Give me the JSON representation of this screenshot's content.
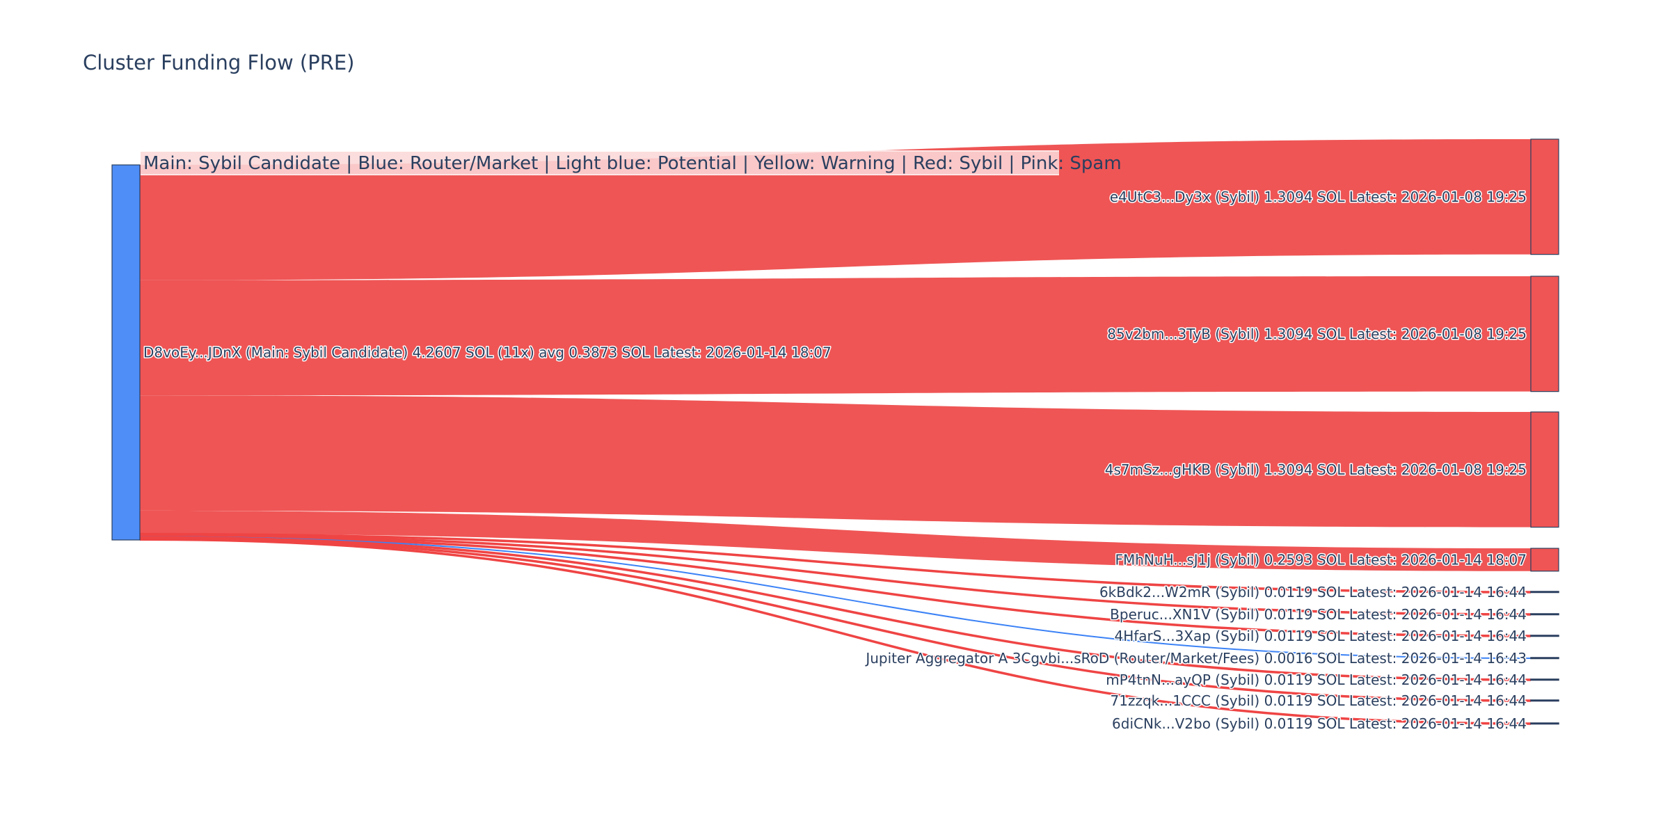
{
  "chart_data": {
    "type": "sankey",
    "title": "Cluster Funding Flow (PRE)",
    "legend_annotation": "Main: Sybil Candidate  |  Blue: Router/Market | Light blue: Potential | Yellow: Warning | Red: Sybil | Pink: Spam",
    "colors": {
      "main": "#4f8ef7",
      "sybil": "#ef5555",
      "router": "#3b82f6",
      "sybil_link": "#ef4444",
      "text": "#2a3f5f"
    },
    "source": {
      "label": "D8voEy...JDnX (Main: Sybil Candidate) 4.2607 SOL (11x) avg 0.3873 SOL Latest: 2026-01-14 18:07",
      "value": 4.2607,
      "category": "main"
    },
    "targets": [
      {
        "label": "e4UtC3...Dy3x (Sybil) 1.3094 SOL Latest: 2026-01-08 19:25",
        "value": 1.3094,
        "category": "sybil"
      },
      {
        "label": "85v2bm...3TyB (Sybil) 1.3094 SOL Latest: 2026-01-08 19:25",
        "value": 1.3094,
        "category": "sybil"
      },
      {
        "label": "4s7mSz...gHKB (Sybil) 1.3094 SOL Latest: 2026-01-08 19:25",
        "value": 1.3094,
        "category": "sybil"
      },
      {
        "label": "FMhNuH...sJ1j (Sybil) 0.2593 SOL Latest: 2026-01-14 18:07",
        "value": 0.2593,
        "category": "sybil"
      },
      {
        "label": "6kBdk2...W2mR (Sybil) 0.0119 SOL Latest: 2026-01-14 16:44",
        "value": 0.0119,
        "category": "sybil"
      },
      {
        "label": "Bperuc...XN1V (Sybil) 0.0119 SOL Latest: 2026-01-14 16:44",
        "value": 0.0119,
        "category": "sybil"
      },
      {
        "label": "4HfarS...3Xap (Sybil) 0.0119 SOL Latest: 2026-01-14 16:44",
        "value": 0.0119,
        "category": "sybil"
      },
      {
        "label": "Jupiter Aggregator A 3Cgvbi...sRoD (Router/Market/Fees) 0.0016 SOL Latest: 2026-01-14 16:43",
        "value": 0.0016,
        "category": "router"
      },
      {
        "label": "mP4tnN...ayQP (Sybil) 0.0119 SOL Latest: 2026-01-14 16:44",
        "value": 0.0119,
        "category": "sybil"
      },
      {
        "label": "71zzqk...1CCC (Sybil) 0.0119 SOL Latest: 2026-01-14 16:44",
        "value": 0.0119,
        "category": "sybil"
      },
      {
        "label": "6diCNk...V2bo (Sybil) 0.0119 SOL Latest: 2026-01-14 16:44",
        "value": 0.0119,
        "category": "sybil"
      }
    ]
  }
}
